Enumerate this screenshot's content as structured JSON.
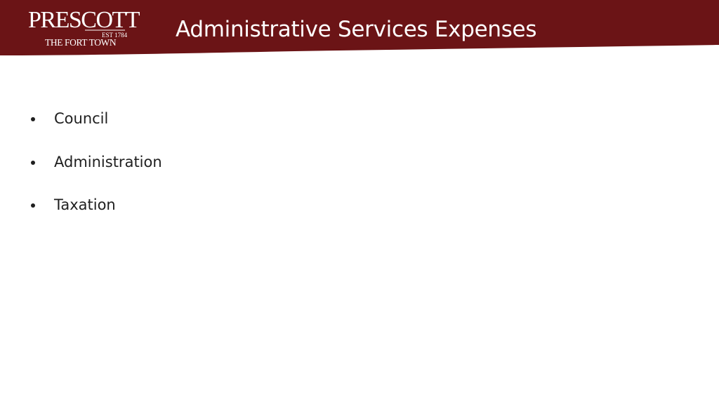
{
  "colors": {
    "header_band": "#6b1416",
    "title_text": "#ffffff",
    "body_text": "#1f1f1f",
    "background": "#ffffff"
  },
  "logo": {
    "name": "PRESCOTT",
    "established": "EST 1784",
    "tagline": "THE FORT TOWN"
  },
  "header": {
    "title": "Administrative Services Expenses"
  },
  "content": {
    "bullets": [
      {
        "label": "Council"
      },
      {
        "label": "Administration"
      },
      {
        "label": "Taxation"
      }
    ]
  }
}
